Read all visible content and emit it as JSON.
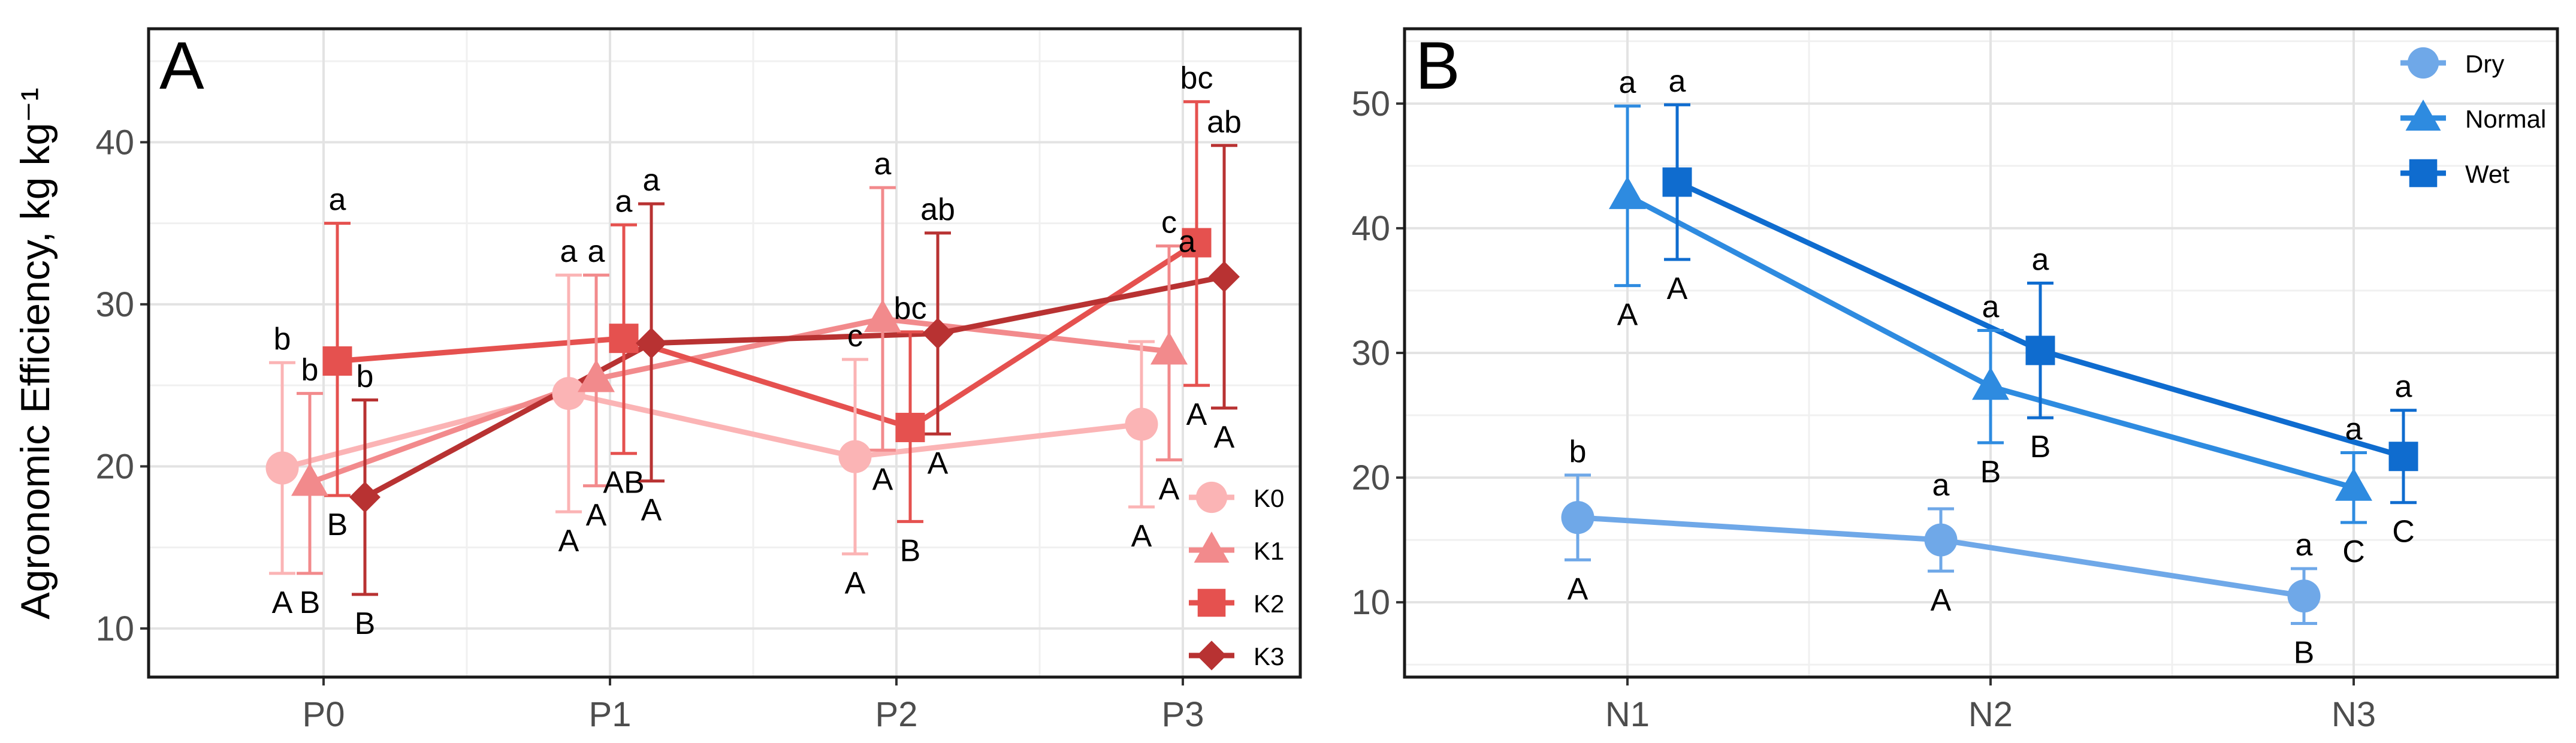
{
  "chart_data": [
    {
      "type": "line",
      "panel_label": "A",
      "ylabel": "Agronomic Efficiency, kg kg⁻¹",
      "xlabel": "",
      "categories": [
        "P0",
        "P1",
        "P2",
        "P3"
      ],
      "ylim": [
        7,
        47
      ],
      "yticks": [
        10,
        20,
        30,
        40
      ],
      "grid": true,
      "legend_position": "bottom-right",
      "series": [
        {
          "name": "K0",
          "marker": "circle",
          "color": "#fbb4b5",
          "values": [
            19.9,
            24.5,
            20.6,
            22.6
          ],
          "err_low": [
            13.4,
            17.2,
            14.6,
            17.5
          ],
          "err_high": [
            26.4,
            31.8,
            26.6,
            27.7
          ],
          "letters_above": [
            "b",
            "a",
            "c",
            ""
          ],
          "letters_below": [
            "A",
            "A",
            "A",
            "A"
          ]
        },
        {
          "name": "K1",
          "marker": "triangle",
          "color": "#f28a8c",
          "values": [
            19.0,
            25.4,
            29.1,
            27.1
          ],
          "err_low": [
            13.4,
            18.8,
            21.0,
            20.4
          ],
          "err_high": [
            24.5,
            31.8,
            37.2,
            33.6
          ],
          "letters_above": [
            "b",
            "a",
            "a",
            "c"
          ],
          "letters_below": [
            "B",
            "A",
            "A",
            "A"
          ]
        },
        {
          "name": "K2",
          "marker": "square",
          "color": "#e5514f",
          "values": [
            26.5,
            27.9,
            22.4,
            33.8
          ],
          "err_low": [
            18.2,
            20.8,
            16.6,
            25.0
          ],
          "err_high": [
            35.0,
            34.9,
            28.3,
            42.5
          ],
          "letters_above": [
            "a",
            "a",
            "bc",
            "bc"
          ],
          "letters_below": [
            "B",
            "AB",
            "B",
            "A"
          ]
        },
        {
          "name": "K3",
          "marker": "diamond",
          "color": "#b83232",
          "values": [
            18.1,
            27.6,
            28.2,
            31.7
          ],
          "err_low": [
            12.1,
            19.1,
            22.0,
            23.6
          ],
          "err_high": [
            24.1,
            36.2,
            34.4,
            39.8
          ],
          "letters_above": [
            "b",
            "a",
            "ab",
            "ab"
          ],
          "letters_below": [
            "B",
            "A",
            "A",
            "A"
          ]
        }
      ],
      "extra_labels": [
        {
          "text": "a",
          "category": "P3",
          "series": "K1"
        }
      ]
    },
    {
      "type": "line",
      "panel_label": "B",
      "ylabel": "",
      "xlabel": "",
      "categories": [
        "N1",
        "N2",
        "N3"
      ],
      "ylim": [
        4,
        56
      ],
      "yticks": [
        10,
        20,
        30,
        40,
        50
      ],
      "grid": true,
      "legend_position": "top-right",
      "series": [
        {
          "name": "Dry",
          "marker": "circle",
          "color": "#6fa8e8",
          "values": [
            16.8,
            15.0,
            10.5
          ],
          "err_low": [
            13.4,
            12.5,
            8.3
          ],
          "err_high": [
            20.2,
            17.5,
            12.7
          ],
          "letters_above": [
            "b",
            "a",
            "a"
          ],
          "letters_below": [
            "A",
            "A",
            "B"
          ]
        },
        {
          "name": "Normal",
          "marker": "triangle",
          "color": "#2e8be0",
          "values": [
            42.6,
            27.3,
            19.2
          ],
          "err_low": [
            35.4,
            22.8,
            16.4
          ],
          "err_high": [
            49.8,
            31.8,
            22.0
          ],
          "letters_above": [
            "a",
            "a",
            "a"
          ],
          "letters_below": [
            "A",
            "B",
            "C"
          ]
        },
        {
          "name": "Wet",
          "marker": "square",
          "color": "#0f6ccf",
          "values": [
            43.7,
            30.2,
            21.7
          ],
          "err_low": [
            37.5,
            24.8,
            18.0
          ],
          "err_high": [
            49.9,
            35.6,
            25.4
          ],
          "letters_above": [
            "a",
            "a",
            "a"
          ],
          "letters_below": [
            "A",
            "B",
            "C"
          ]
        }
      ]
    }
  ]
}
